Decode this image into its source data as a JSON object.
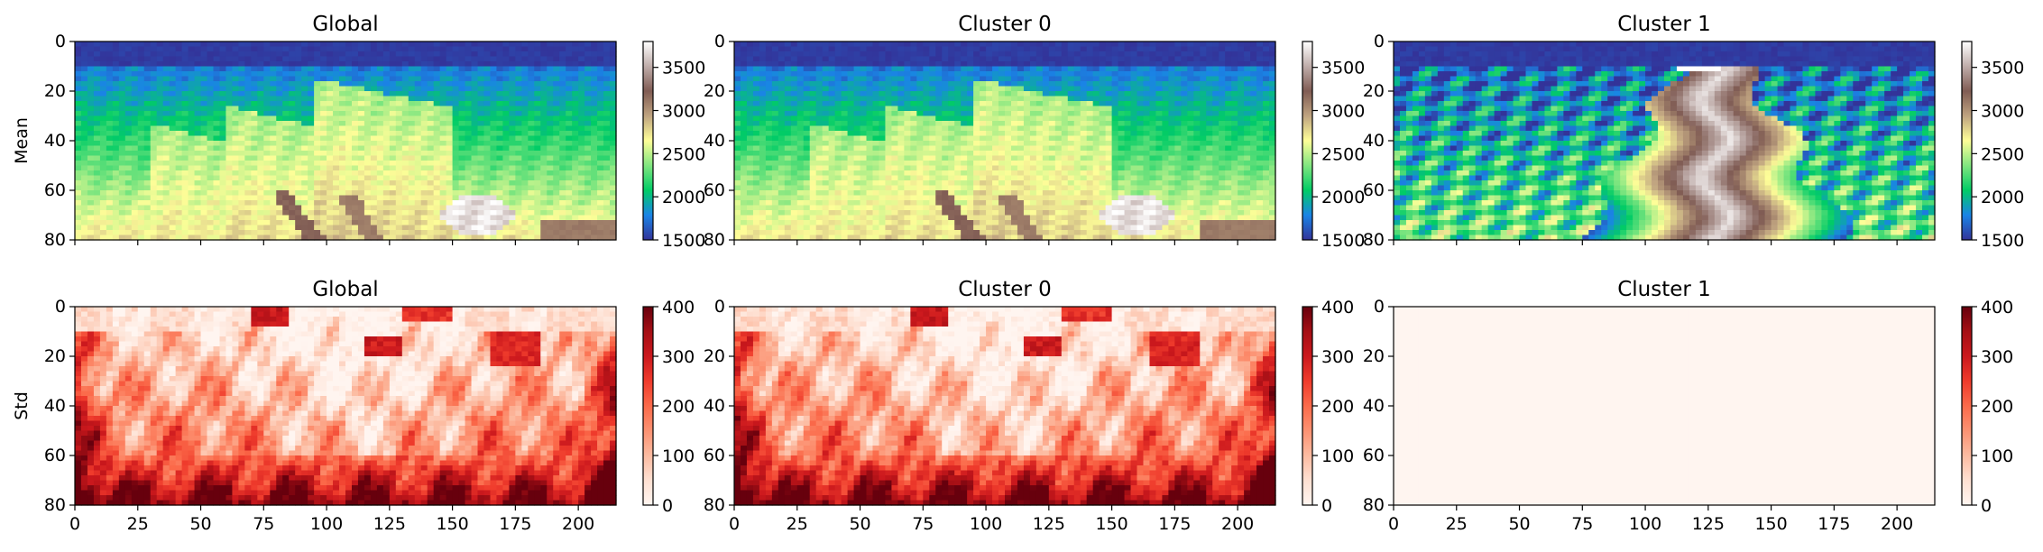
{
  "chart_data": [
    {
      "type": "heatmap",
      "row": 0,
      "col": 0,
      "title": "Global",
      "ylabel": "Mean",
      "colormap": "terrain",
      "clim": [
        1500,
        3800
      ],
      "cbar_ticks": [
        1500,
        2000,
        2500,
        3000,
        3500
      ],
      "xlim": [
        0,
        215
      ],
      "ylim": [
        80,
        0
      ],
      "xticks": [
        0,
        25,
        50,
        75,
        100,
        125,
        150,
        175,
        200
      ],
      "yticks": [
        0,
        20,
        40,
        60,
        80
      ],
      "xticklabels_shown": false
    },
    {
      "type": "heatmap",
      "row": 0,
      "col": 1,
      "title": "Cluster 0",
      "ylabel": "",
      "colormap": "terrain",
      "clim": [
        1500,
        3800
      ],
      "cbar_ticks": [
        1500,
        2000,
        2500,
        3000,
        3500
      ],
      "xlim": [
        0,
        215
      ],
      "ylim": [
        80,
        0
      ],
      "xticks": [
        0,
        25,
        50,
        75,
        100,
        125,
        150,
        175,
        200
      ],
      "yticks": [
        0,
        20,
        40,
        60,
        80
      ],
      "xticklabels_shown": false
    },
    {
      "type": "heatmap",
      "row": 0,
      "col": 2,
      "title": "Cluster 1",
      "ylabel": "",
      "colormap": "terrain",
      "clim": [
        1500,
        3800
      ],
      "cbar_ticks": [
        1500,
        2000,
        2500,
        3000,
        3500
      ],
      "xlim": [
        0,
        215
      ],
      "ylim": [
        80,
        0
      ],
      "xticks": [
        0,
        25,
        50,
        75,
        100,
        125,
        150,
        175,
        200
      ],
      "yticks": [
        0,
        20,
        40,
        60,
        80
      ],
      "xticklabels_shown": false
    },
    {
      "type": "heatmap",
      "row": 1,
      "col": 0,
      "title": "Global",
      "ylabel": "Std",
      "colormap": "Reds",
      "clim": [
        0,
        400
      ],
      "cbar_ticks": [
        0,
        100,
        200,
        300,
        400
      ],
      "xlim": [
        0,
        215
      ],
      "ylim": [
        80,
        0
      ],
      "xticks": [
        0,
        25,
        50,
        75,
        100,
        125,
        150,
        175,
        200
      ],
      "yticks": [
        0,
        20,
        40,
        60,
        80
      ],
      "xticklabels_shown": true
    },
    {
      "type": "heatmap",
      "row": 1,
      "col": 1,
      "title": "Cluster 0",
      "ylabel": "",
      "colormap": "Reds",
      "clim": [
        0,
        400
      ],
      "cbar_ticks": [
        0,
        100,
        200,
        300,
        400
      ],
      "xlim": [
        0,
        215
      ],
      "ylim": [
        80,
        0
      ],
      "xticks": [
        0,
        25,
        50,
        75,
        100,
        125,
        150,
        175,
        200
      ],
      "yticks": [
        0,
        20,
        40,
        60,
        80
      ],
      "xticklabels_shown": true
    },
    {
      "type": "heatmap",
      "row": 1,
      "col": 2,
      "title": "Cluster 1",
      "ylabel": "",
      "colormap": "Reds",
      "clim": [
        0,
        400
      ],
      "cbar_ticks": [
        0,
        100,
        200,
        300,
        400
      ],
      "xlim": [
        0,
        215
      ],
      "ylim": [
        80,
        0
      ],
      "xticks": [
        0,
        25,
        50,
        75,
        100,
        125,
        150,
        175,
        200
      ],
      "yticks": [
        0,
        20,
        40,
        60,
        80
      ],
      "xticklabels_shown": true,
      "uniform_value": 0
    }
  ],
  "colors": {
    "terrain": [
      "#333399",
      "#1a84e6",
      "#01cc66",
      "#81e680",
      "#fefe98",
      "#bfa380",
      "#805c54",
      "#bfadaa",
      "#ffffff"
    ],
    "reds": [
      "#fff5f0",
      "#fee0d2",
      "#fcbba1",
      "#fc9272",
      "#fb6a4a",
      "#ef3b2c",
      "#cb181d",
      "#a50f15",
      "#67000d"
    ]
  }
}
